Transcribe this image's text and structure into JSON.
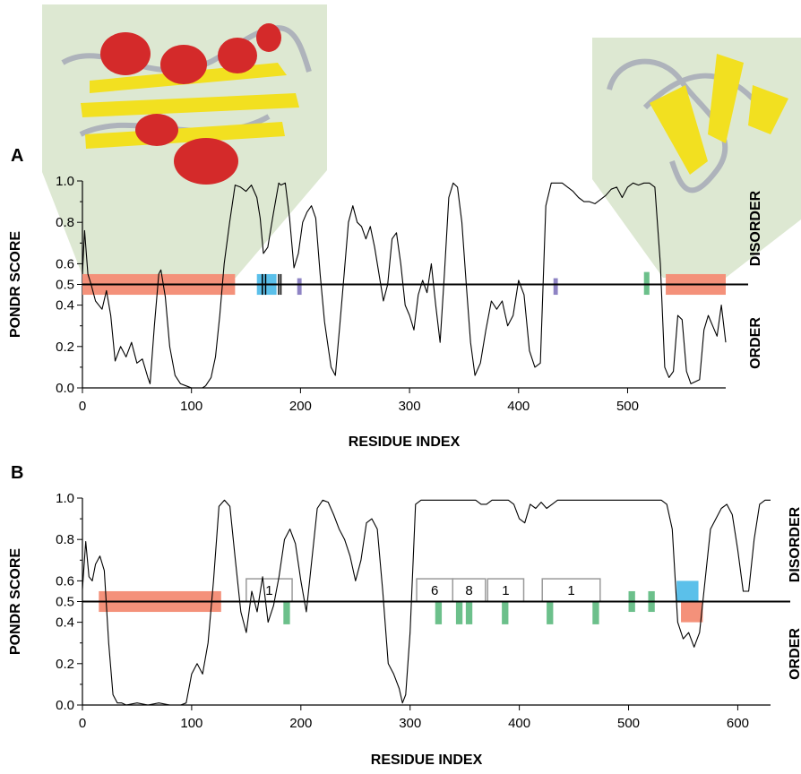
{
  "chart_data": [
    {
      "panel": "A",
      "type": "line",
      "xlabel": "RESIDUE INDEX",
      "ylabel": "PONDR SCORE",
      "xlim": [
        0,
        590
      ],
      "ylim": [
        0,
        1
      ],
      "xticks": [
        0,
        100,
        200,
        300,
        400,
        500
      ],
      "yticks": [
        0.0,
        0.2,
        0.4,
        0.5,
        0.6,
        0.8,
        1.0
      ],
      "ytick_labels": [
        "0.0",
        "0.2",
        "0.4",
        "0.5",
        "0.6",
        "0.8",
        "1.0"
      ],
      "threshold": 0.5,
      "side_labels": {
        "upper": "DISORDER",
        "lower": "ORDER"
      },
      "series": [
        {
          "x": [
            0,
            2,
            5,
            8,
            12,
            18,
            22,
            26,
            30,
            35,
            40,
            45,
            50,
            55,
            60,
            62,
            66,
            70,
            72,
            76,
            80,
            85,
            90,
            95,
            100,
            105,
            110,
            113,
            118,
            122,
            126,
            130,
            135,
            140,
            145,
            150,
            155,
            160,
            163,
            166,
            170,
            175,
            180,
            182,
            186,
            190,
            194,
            198,
            202,
            206,
            210,
            214,
            218,
            222,
            228,
            232,
            236,
            240,
            244,
            248,
            252,
            256,
            260,
            264,
            268,
            272,
            276,
            280,
            284,
            288,
            292,
            296,
            300,
            304,
            308,
            312,
            316,
            320,
            324,
            328,
            332,
            336,
            340,
            344,
            348,
            352,
            356,
            360,
            365,
            370,
            375,
            380,
            385,
            390,
            395,
            400,
            405,
            410,
            415,
            420,
            425,
            430,
            435,
            440,
            445,
            450,
            455,
            460,
            465,
            470,
            475,
            480,
            485,
            490,
            495,
            500,
            505,
            510,
            515,
            520,
            525,
            530,
            534,
            538,
            542,
            546,
            550,
            554,
            558,
            562,
            566,
            570,
            574,
            578,
            582,
            586,
            590
          ],
          "y": [
            0.55,
            0.76,
            0.55,
            0.5,
            0.42,
            0.38,
            0.47,
            0.35,
            0.13,
            0.2,
            0.15,
            0.22,
            0.12,
            0.14,
            0.05,
            0.02,
            0.3,
            0.55,
            0.57,
            0.44,
            0.2,
            0.06,
            0.02,
            0.01,
            0.0,
            0.0,
            0.0,
            0.01,
            0.05,
            0.15,
            0.35,
            0.6,
            0.8,
            0.98,
            0.97,
            0.95,
            0.98,
            0.92,
            0.82,
            0.65,
            0.68,
            0.84,
            0.99,
            0.98,
            0.99,
            0.82,
            0.58,
            0.65,
            0.8,
            0.85,
            0.88,
            0.82,
            0.55,
            0.32,
            0.1,
            0.06,
            0.3,
            0.55,
            0.8,
            0.88,
            0.8,
            0.78,
            0.72,
            0.78,
            0.68,
            0.55,
            0.42,
            0.5,
            0.72,
            0.75,
            0.6,
            0.4,
            0.35,
            0.28,
            0.45,
            0.52,
            0.46,
            0.6,
            0.4,
            0.22,
            0.55,
            0.92,
            0.99,
            0.97,
            0.8,
            0.5,
            0.22,
            0.06,
            0.12,
            0.28,
            0.42,
            0.38,
            0.42,
            0.3,
            0.35,
            0.52,
            0.45,
            0.18,
            0.1,
            0.12,
            0.88,
            0.99,
            0.99,
            0.99,
            0.97,
            0.95,
            0.92,
            0.9,
            0.9,
            0.89,
            0.91,
            0.93,
            0.96,
            0.97,
            0.92,
            0.97,
            0.99,
            0.98,
            0.99,
            0.99,
            0.97,
            0.6,
            0.1,
            0.05,
            0.08,
            0.35,
            0.33,
            0.08,
            0.02,
            0.03,
            0.04,
            0.28,
            0.35,
            0.3,
            0.25,
            0.4,
            0.22
          ]
        }
      ],
      "bars": [
        {
          "x0": 0,
          "x1": 140,
          "y0": 0.45,
          "y1": 0.55,
          "color": "#f4917a"
        },
        {
          "x0": 535,
          "x1": 590,
          "y0": 0.45,
          "y1": 0.55,
          "color": "#f4917a"
        },
        {
          "x0": 160,
          "x1": 178,
          "y0": 0.45,
          "y1": 0.55,
          "color": "#5bc0ea"
        },
        {
          "x0": 197,
          "x1": 201,
          "y0": 0.45,
          "y1": 0.53,
          "color": "#8e83c4"
        },
        {
          "x0": 432,
          "x1": 436,
          "y0": 0.45,
          "y1": 0.53,
          "color": "#8e83c4"
        },
        {
          "x0": 515,
          "x1": 520,
          "y0": 0.45,
          "y1": 0.56,
          "color": "#6cc08b"
        }
      ],
      "lines": [
        {
          "x": 165,
          "y0": 0.45,
          "y1": 0.55,
          "color": "#000000"
        },
        {
          "x": 168,
          "y0": 0.45,
          "y1": 0.55,
          "color": "#000000"
        },
        {
          "x": 180,
          "y0": 0.45,
          "y1": 0.55,
          "color": "#000000"
        },
        {
          "x": 182,
          "y0": 0.45,
          "y1": 0.55,
          "color": "#000000"
        }
      ],
      "boxes": []
    },
    {
      "panel": "B",
      "type": "line",
      "xlabel": "RESIDUE INDEX",
      "ylabel": "PONDR SCORE",
      "xlim": [
        0,
        630
      ],
      "ylim": [
        0,
        1
      ],
      "xticks": [
        0,
        100,
        200,
        300,
        400,
        500,
        600
      ],
      "yticks": [
        0.0,
        0.2,
        0.4,
        0.5,
        0.6,
        0.8,
        1.0
      ],
      "ytick_labels": [
        "0.0",
        "0.2",
        "0.4",
        "0.5",
        "0.6",
        "0.8",
        "1.0"
      ],
      "threshold": 0.5,
      "side_labels": {
        "upper": "DISORDER",
        "lower": "ORDER"
      },
      "series": [
        {
          "x": [
            0,
            3,
            6,
            9,
            12,
            16,
            20,
            24,
            28,
            32,
            36,
            40,
            50,
            60,
            70,
            80,
            90,
            95,
            100,
            105,
            110,
            115,
            120,
            125,
            130,
            135,
            140,
            145,
            150,
            155,
            160,
            165,
            170,
            175,
            180,
            185,
            190,
            195,
            200,
            205,
            210,
            215,
            220,
            225,
            230,
            235,
            240,
            245,
            250,
            255,
            260,
            265,
            270,
            275,
            280,
            285,
            290,
            293,
            296,
            300,
            305,
            310,
            320,
            330,
            340,
            350,
            360,
            365,
            370,
            375,
            380,
            385,
            390,
            395,
            400,
            405,
            410,
            415,
            420,
            425,
            430,
            435,
            440,
            450,
            460,
            470,
            480,
            490,
            500,
            510,
            520,
            530,
            535,
            540,
            545,
            550,
            555,
            560,
            565,
            570,
            575,
            580,
            585,
            590,
            595,
            600,
            605,
            610,
            615,
            620,
            625,
            630
          ],
          "y": [
            0.56,
            0.79,
            0.62,
            0.6,
            0.68,
            0.72,
            0.65,
            0.3,
            0.05,
            0.01,
            0.01,
            0.0,
            0.01,
            0.0,
            0.01,
            0.0,
            0.0,
            0.01,
            0.15,
            0.2,
            0.15,
            0.3,
            0.6,
            0.96,
            0.99,
            0.96,
            0.7,
            0.45,
            0.35,
            0.55,
            0.45,
            0.62,
            0.4,
            0.48,
            0.62,
            0.8,
            0.85,
            0.78,
            0.6,
            0.45,
            0.7,
            0.95,
            0.99,
            0.98,
            0.92,
            0.85,
            0.8,
            0.72,
            0.6,
            0.7,
            0.88,
            0.9,
            0.85,
            0.55,
            0.2,
            0.15,
            0.08,
            0.01,
            0.05,
            0.35,
            0.97,
            0.99,
            0.99,
            0.99,
            0.99,
            0.99,
            0.99,
            0.97,
            0.97,
            0.99,
            0.99,
            0.99,
            0.99,
            0.97,
            0.9,
            0.88,
            0.97,
            0.95,
            0.98,
            0.95,
            0.97,
            0.99,
            0.99,
            0.99,
            0.99,
            0.99,
            0.99,
            0.99,
            0.99,
            0.99,
            0.99,
            0.99,
            0.97,
            0.85,
            0.4,
            0.32,
            0.35,
            0.28,
            0.35,
            0.6,
            0.85,
            0.9,
            0.95,
            0.97,
            0.92,
            0.75,
            0.55,
            0.55,
            0.8,
            0.97,
            0.99,
            0.99
          ]
        }
      ],
      "bars": [
        {
          "x0": 15,
          "x1": 127,
          "y0": 0.45,
          "y1": 0.55,
          "color": "#f4917a"
        },
        {
          "x0": 544,
          "x1": 564,
          "y0": 0.5,
          "y1": 0.6,
          "color": "#5bc0ea"
        },
        {
          "x0": 548,
          "x1": 568,
          "y0": 0.4,
          "y1": 0.5,
          "color": "#f4917a"
        },
        {
          "x0": 184,
          "x1": 190,
          "y0": 0.39,
          "y1": 0.5,
          "color": "#6cc08b"
        },
        {
          "x0": 323,
          "x1": 329,
          "y0": 0.39,
          "y1": 0.5,
          "color": "#6cc08b"
        },
        {
          "x0": 342,
          "x1": 348,
          "y0": 0.39,
          "y1": 0.5,
          "color": "#6cc08b"
        },
        {
          "x0": 351,
          "x1": 357,
          "y0": 0.39,
          "y1": 0.5,
          "color": "#6cc08b"
        },
        {
          "x0": 384,
          "x1": 390,
          "y0": 0.39,
          "y1": 0.5,
          "color": "#6cc08b"
        },
        {
          "x0": 425,
          "x1": 431,
          "y0": 0.39,
          "y1": 0.5,
          "color": "#6cc08b"
        },
        {
          "x0": 467,
          "x1": 473,
          "y0": 0.39,
          "y1": 0.5,
          "color": "#6cc08b"
        },
        {
          "x0": 500,
          "x1": 506,
          "y0": 0.45,
          "y1": 0.55,
          "color": "#6cc08b"
        },
        {
          "x0": 518,
          "x1": 524,
          "y0": 0.45,
          "y1": 0.55,
          "color": "#6cc08b"
        }
      ],
      "lines": [],
      "boxes": [
        {
          "x0": 150,
          "x1": 192,
          "y0": 0.5,
          "y1": 0.61,
          "label": "1"
        },
        {
          "x0": 306,
          "x1": 339,
          "y0": 0.5,
          "y1": 0.61,
          "label": "6"
        },
        {
          "x0": 339,
          "x1": 369,
          "y0": 0.5,
          "y1": 0.61,
          "label": "8"
        },
        {
          "x0": 371,
          "x1": 404,
          "y0": 0.5,
          "y1": 0.61,
          "label": "1"
        },
        {
          "x0": 421,
          "x1": 474,
          "y0": 0.5,
          "y1": 0.61,
          "label": "1"
        }
      ]
    }
  ]
}
